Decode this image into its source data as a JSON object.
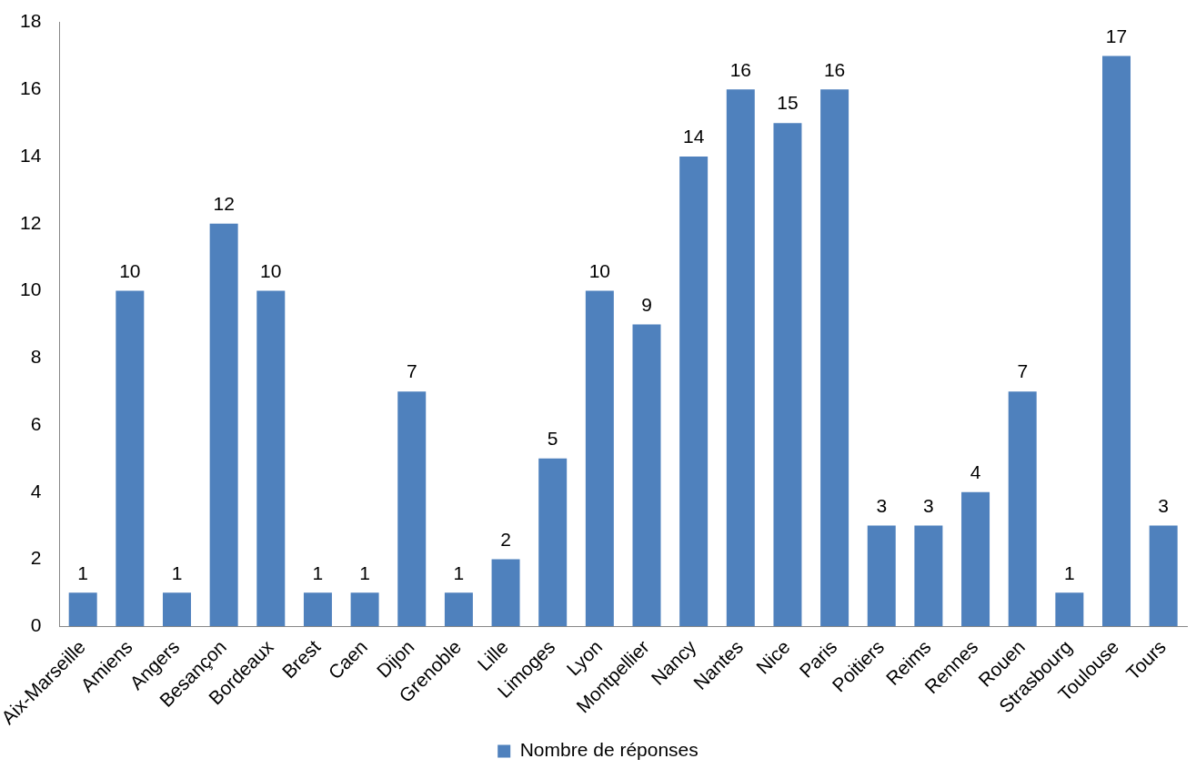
{
  "chart_data": {
    "type": "bar",
    "categories": [
      "Aix-Marseille",
      "Amiens",
      "Angers",
      "Besançon",
      "Bordeaux",
      "Brest",
      "Caen",
      "Dijon",
      "Grenoble",
      "Lille",
      "Limoges",
      "Lyon",
      "Montpellier",
      "Nancy",
      "Nantes",
      "Nice",
      "Paris",
      "Poitiers",
      "Reims",
      "Rennes",
      "Rouen",
      "Strasbourg",
      "Toulouse",
      "Tours"
    ],
    "series": [
      {
        "name": "Nombre de réponses",
        "color": "#4f81bd",
        "values": [
          1,
          10,
          1,
          12,
          10,
          1,
          1,
          7,
          1,
          2,
          5,
          10,
          9,
          14,
          16,
          15,
          16,
          3,
          3,
          4,
          7,
          1,
          17,
          3
        ]
      }
    ],
    "ylim": [
      0,
      18
    ],
    "yticks": [
      0,
      2,
      4,
      6,
      8,
      10,
      12,
      14,
      16,
      18
    ],
    "grid": false,
    "legend": "bottom",
    "data_labels": true
  }
}
